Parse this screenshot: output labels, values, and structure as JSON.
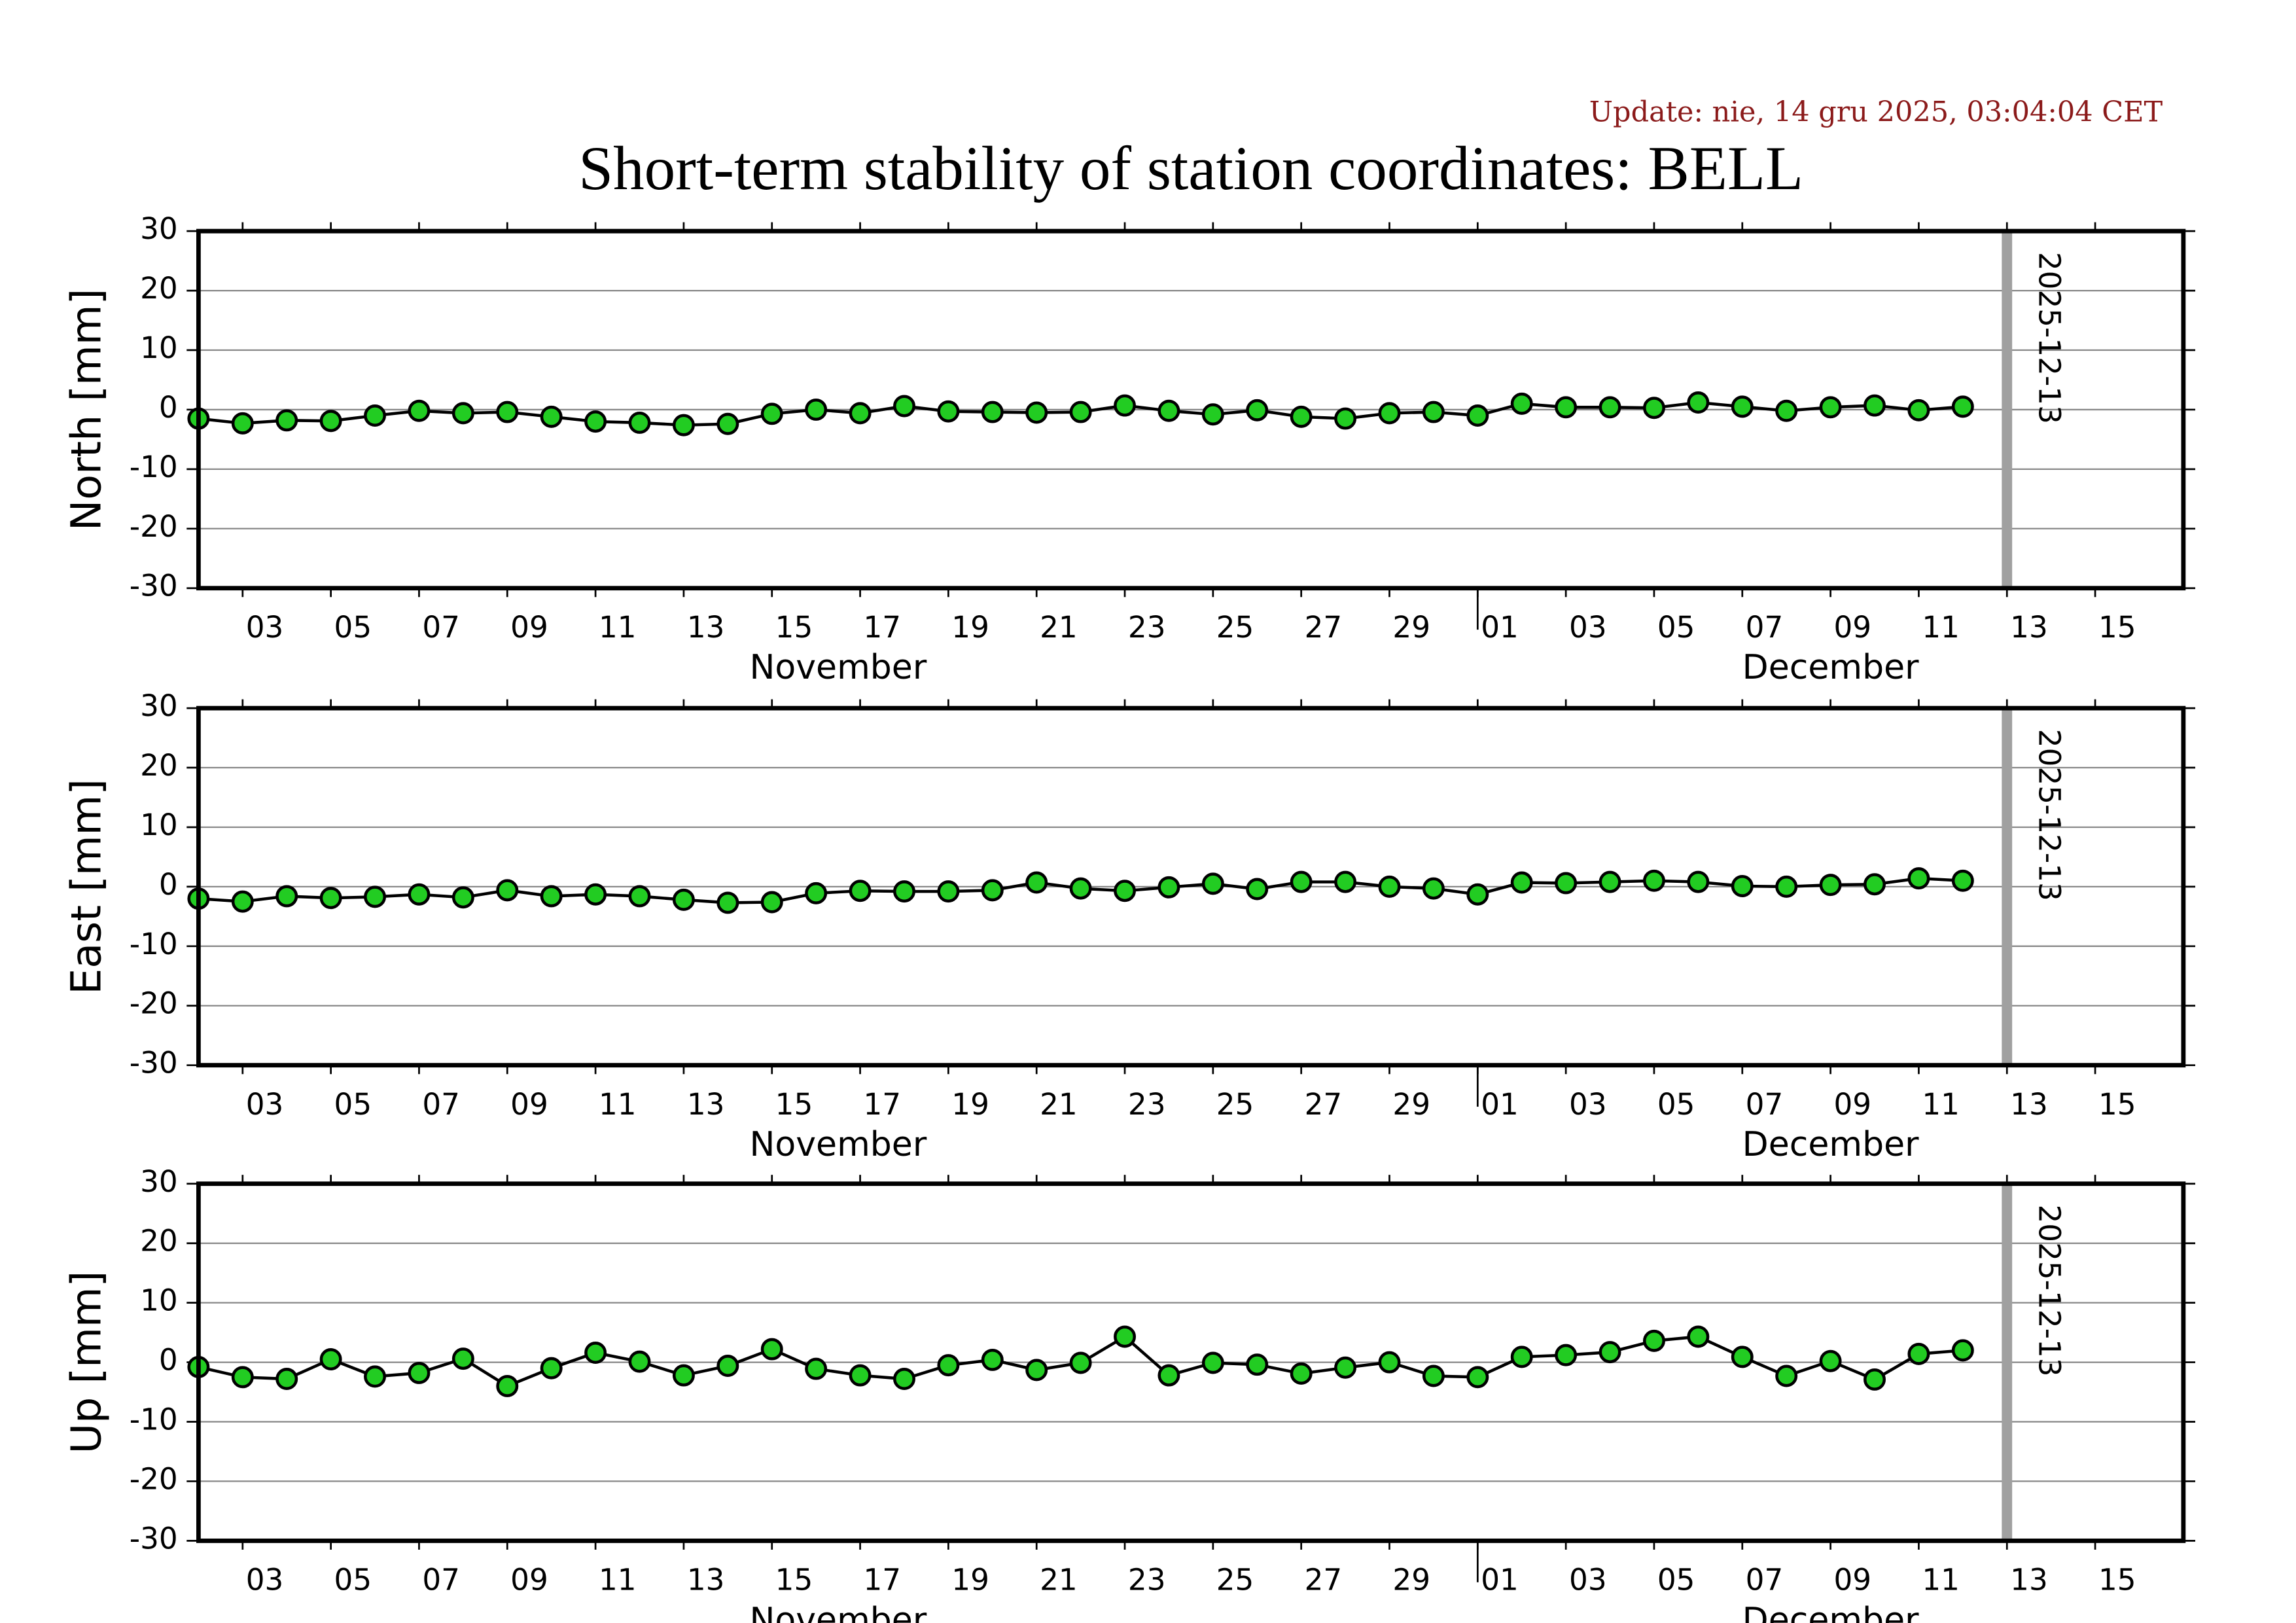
{
  "update": "Update: nie, 14 gru 2025, 03:04:04 CET",
  "title": "Short-term stability of station coordinates: BELL",
  "chart_data": [
    {
      "type": "line",
      "ylabel": "North [mm]",
      "color": "#22cc22",
      "x": [
        "11-02",
        "11-03",
        "11-04",
        "11-05",
        "11-06",
        "11-07",
        "11-08",
        "11-09",
        "11-10",
        "11-11",
        "11-12",
        "11-13",
        "11-14",
        "11-15",
        "11-16",
        "11-17",
        "11-18",
        "11-19",
        "11-20",
        "11-21",
        "11-22",
        "11-23",
        "11-24",
        "11-25",
        "11-26",
        "11-27",
        "11-28",
        "11-29",
        "11-30",
        "12-01",
        "12-02",
        "12-03",
        "12-04",
        "12-05",
        "12-06",
        "12-07",
        "12-08",
        "12-09",
        "12-10",
        "12-11",
        "12-12"
      ],
      "values": [
        -1.5,
        -2.3,
        -1.8,
        -1.9,
        -1,
        -0.2,
        -0.6,
        -0.4,
        -1.2,
        -2,
        -2.2,
        -2.6,
        -2.4,
        -0.7,
        0,
        -0.6,
        0.6,
        -0.3,
        -0.4,
        -0.5,
        -0.4,
        0.7,
        -0.2,
        -0.8,
        -0.1,
        -1.2,
        -1.5,
        -0.6,
        -0.4,
        -1,
        1,
        0.4,
        0.4,
        0.3,
        1.2,
        0.5,
        -0.2,
        0.4,
        0.7,
        -0.1,
        0.5
      ],
      "xlim": [
        "11-02",
        "12-17"
      ],
      "xticks": [
        {
          "value": "11-03",
          "label": "03"
        },
        {
          "value": "11-05",
          "label": "05"
        },
        {
          "value": "11-07",
          "label": "07"
        },
        {
          "value": "11-09",
          "label": "09"
        },
        {
          "value": "11-11",
          "label": "11"
        },
        {
          "value": "11-13",
          "label": "13"
        },
        {
          "value": "11-15",
          "label": "15"
        },
        {
          "value": "11-17",
          "label": "17"
        },
        {
          "value": "11-19",
          "label": "19"
        },
        {
          "value": "11-21",
          "label": "21"
        },
        {
          "value": "11-23",
          "label": "23"
        },
        {
          "value": "11-25",
          "label": "25"
        },
        {
          "value": "11-27",
          "label": "27"
        },
        {
          "value": "11-29",
          "label": "29"
        },
        {
          "value": "12-01",
          "label": "01"
        },
        {
          "value": "12-03",
          "label": "03"
        },
        {
          "value": "12-05",
          "label": "05"
        },
        {
          "value": "12-07",
          "label": "07"
        },
        {
          "value": "12-09",
          "label": "09"
        },
        {
          "value": "12-11",
          "label": "11"
        },
        {
          "value": "12-13",
          "label": "13"
        },
        {
          "value": "12-15",
          "label": "15"
        }
      ],
      "months": [
        {
          "value": "11-02",
          "label": "November"
        },
        {
          "value": "12-01",
          "label": "December"
        }
      ],
      "marker": {
        "value": "12-13",
        "label": "2025-12-13"
      },
      "ylim": [
        -30,
        30
      ],
      "yticks": [
        -30,
        -20,
        -10,
        0,
        10,
        20,
        30
      ],
      "grid": true
    },
    {
      "type": "line",
      "ylabel": "East [mm]",
      "color": "#22cc22",
      "x": [
        "11-02",
        "11-03",
        "11-04",
        "11-05",
        "11-06",
        "11-07",
        "11-08",
        "11-09",
        "11-10",
        "11-11",
        "11-12",
        "11-13",
        "11-14",
        "11-15",
        "11-16",
        "11-17",
        "11-18",
        "11-19",
        "11-20",
        "11-21",
        "11-22",
        "11-23",
        "11-24",
        "11-25",
        "11-26",
        "11-27",
        "11-28",
        "11-29",
        "11-30",
        "12-01",
        "12-02",
        "12-03",
        "12-04",
        "12-05",
        "12-06",
        "12-07",
        "12-08",
        "12-09",
        "12-10",
        "12-11",
        "12-12"
      ],
      "values": [
        -2,
        -2.5,
        -1.6,
        -1.9,
        -1.7,
        -1.3,
        -1.8,
        -0.6,
        -1.6,
        -1.3,
        -1.6,
        -2.2,
        -2.7,
        -2.6,
        -1.1,
        -0.7,
        -0.8,
        -0.8,
        -0.6,
        0.7,
        -0.3,
        -0.7,
        -0.1,
        0.5,
        -0.4,
        0.8,
        0.8,
        0,
        -0.3,
        -1.3,
        0.7,
        0.6,
        0.8,
        1,
        0.8,
        0.1,
        0,
        0.3,
        0.4,
        1.4,
        1
      ],
      "xlim": [
        "11-02",
        "12-17"
      ],
      "xticks": [
        {
          "value": "11-03",
          "label": "03"
        },
        {
          "value": "11-05",
          "label": "05"
        },
        {
          "value": "11-07",
          "label": "07"
        },
        {
          "value": "11-09",
          "label": "09"
        },
        {
          "value": "11-11",
          "label": "11"
        },
        {
          "value": "11-13",
          "label": "13"
        },
        {
          "value": "11-15",
          "label": "15"
        },
        {
          "value": "11-17",
          "label": "17"
        },
        {
          "value": "11-19",
          "label": "19"
        },
        {
          "value": "11-21",
          "label": "21"
        },
        {
          "value": "11-23",
          "label": "23"
        },
        {
          "value": "11-25",
          "label": "25"
        },
        {
          "value": "11-27",
          "label": "27"
        },
        {
          "value": "11-29",
          "label": "29"
        },
        {
          "value": "12-01",
          "label": "01"
        },
        {
          "value": "12-03",
          "label": "03"
        },
        {
          "value": "12-05",
          "label": "05"
        },
        {
          "value": "12-07",
          "label": "07"
        },
        {
          "value": "12-09",
          "label": "09"
        },
        {
          "value": "12-11",
          "label": "11"
        },
        {
          "value": "12-13",
          "label": "13"
        },
        {
          "value": "12-15",
          "label": "15"
        }
      ],
      "months": [
        {
          "value": "11-02",
          "label": "November"
        },
        {
          "value": "12-01",
          "label": "December"
        }
      ],
      "marker": {
        "value": "12-13",
        "label": "2025-12-13"
      },
      "ylim": [
        -30,
        30
      ],
      "yticks": [
        -30,
        -20,
        -10,
        0,
        10,
        20,
        30
      ],
      "grid": true
    },
    {
      "type": "line",
      "ylabel": "Up [mm]",
      "color": "#22cc22",
      "x": [
        "11-02",
        "11-03",
        "11-04",
        "11-05",
        "11-06",
        "11-07",
        "11-08",
        "11-09",
        "11-10",
        "11-11",
        "11-12",
        "11-13",
        "11-14",
        "11-15",
        "11-16",
        "11-17",
        "11-18",
        "11-19",
        "11-20",
        "11-21",
        "11-22",
        "11-23",
        "11-24",
        "11-25",
        "11-26",
        "11-27",
        "11-28",
        "11-29",
        "11-30",
        "12-01",
        "12-02",
        "12-03",
        "12-04",
        "12-05",
        "12-06",
        "12-07",
        "12-08",
        "12-09",
        "12-10",
        "12-11",
        "12-12"
      ],
      "values": [
        -0.8,
        -2.5,
        -2.8,
        0.5,
        -2.4,
        -1.8,
        0.6,
        -4,
        -1,
        1.6,
        0.1,
        -2.2,
        -0.6,
        2.2,
        -1.1,
        -2.2,
        -2.8,
        -0.5,
        0.4,
        -1.3,
        -0.1,
        4.3,
        -2.2,
        -0.1,
        -0.4,
        -1.9,
        -0.9,
        0,
        -2.3,
        -2.5,
        0.9,
        1.2,
        1.7,
        3.6,
        4.3,
        0.9,
        -2.3,
        0.2,
        -2.9,
        1.4,
        2
      ],
      "xlim": [
        "11-02",
        "12-17"
      ],
      "xticks": [
        {
          "value": "11-03",
          "label": "03"
        },
        {
          "value": "11-05",
          "label": "05"
        },
        {
          "value": "11-07",
          "label": "07"
        },
        {
          "value": "11-09",
          "label": "09"
        },
        {
          "value": "11-11",
          "label": "11"
        },
        {
          "value": "11-13",
          "label": "13"
        },
        {
          "value": "11-15",
          "label": "15"
        },
        {
          "value": "11-17",
          "label": "17"
        },
        {
          "value": "11-19",
          "label": "19"
        },
        {
          "value": "11-21",
          "label": "21"
        },
        {
          "value": "11-23",
          "label": "23"
        },
        {
          "value": "11-25",
          "label": "25"
        },
        {
          "value": "11-27",
          "label": "27"
        },
        {
          "value": "11-29",
          "label": "29"
        },
        {
          "value": "12-01",
          "label": "01"
        },
        {
          "value": "12-03",
          "label": "03"
        },
        {
          "value": "12-05",
          "label": "05"
        },
        {
          "value": "12-07",
          "label": "07"
        },
        {
          "value": "12-09",
          "label": "09"
        },
        {
          "value": "12-11",
          "label": "11"
        },
        {
          "value": "12-13",
          "label": "13"
        },
        {
          "value": "12-15",
          "label": "15"
        }
      ],
      "months": [
        {
          "value": "11-02",
          "label": "November"
        },
        {
          "value": "12-01",
          "label": "December"
        }
      ],
      "marker": {
        "value": "12-13",
        "label": "2025-12-13"
      },
      "ylim": [
        -30,
        30
      ],
      "yticks": [
        -30,
        -20,
        -10,
        0,
        10,
        20,
        30
      ],
      "grid": true
    }
  ]
}
